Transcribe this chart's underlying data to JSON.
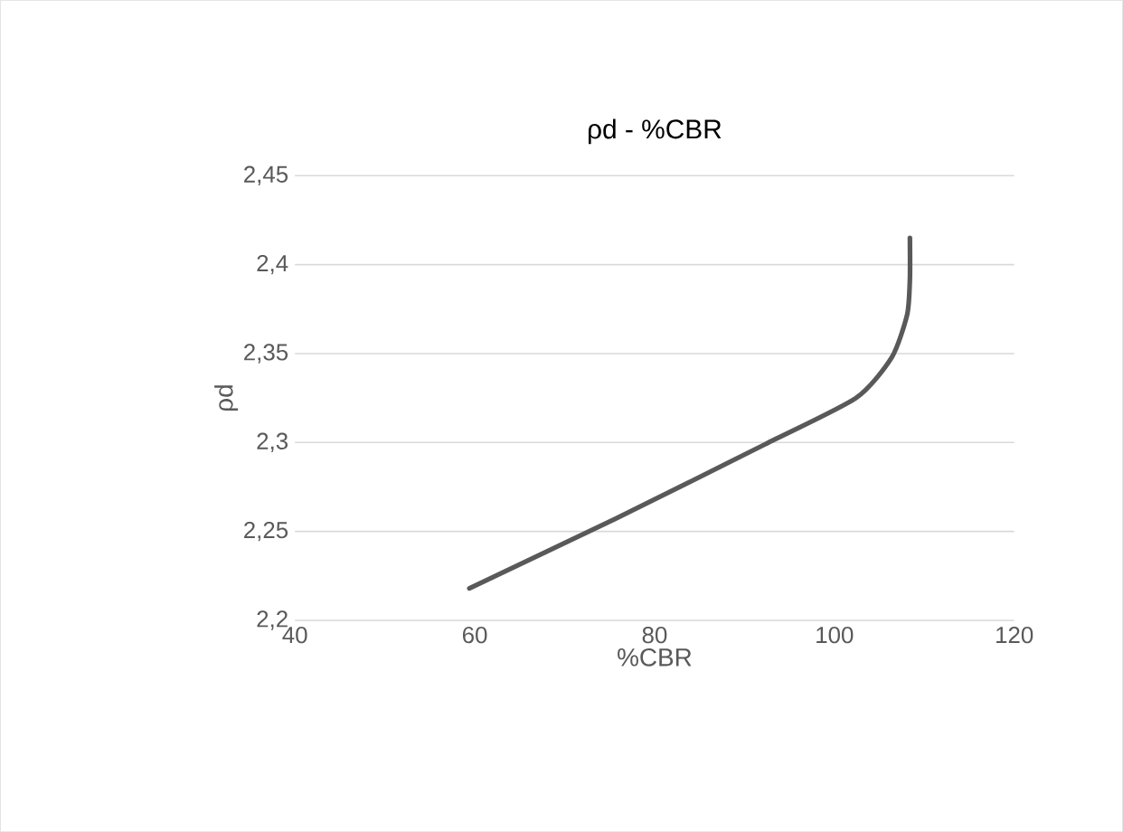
{
  "chart_data": {
    "type": "line",
    "title": "ρd - %CBR",
    "xlabel": "%CBR",
    "ylabel": "ρd",
    "xlim": [
      40,
      120
    ],
    "xticks": [
      40,
      60,
      80,
      100,
      120
    ],
    "ylim": [
      2.2,
      2.45
    ],
    "yticks": [
      {
        "value": 2.2,
        "label": "2,2"
      },
      {
        "value": 2.25,
        "label": "2,25"
      },
      {
        "value": 2.3,
        "label": "2,3"
      },
      {
        "value": 2.35,
        "label": "2,35"
      },
      {
        "value": 2.4,
        "label": "2,4"
      },
      {
        "value": 2.45,
        "label": "2,45"
      }
    ],
    "grid": "y",
    "marker": "none",
    "line_style": "solid",
    "series": [
      {
        "color": "#595959",
        "x": [
          59.4,
          75.6,
          92.3,
          102.4,
          106.4,
          108.1,
          108.4,
          108.4
        ],
        "values": [
          2.218,
          2.257,
          2.299,
          2.325,
          2.348,
          2.372,
          2.392,
          2.415
        ]
      }
    ]
  }
}
